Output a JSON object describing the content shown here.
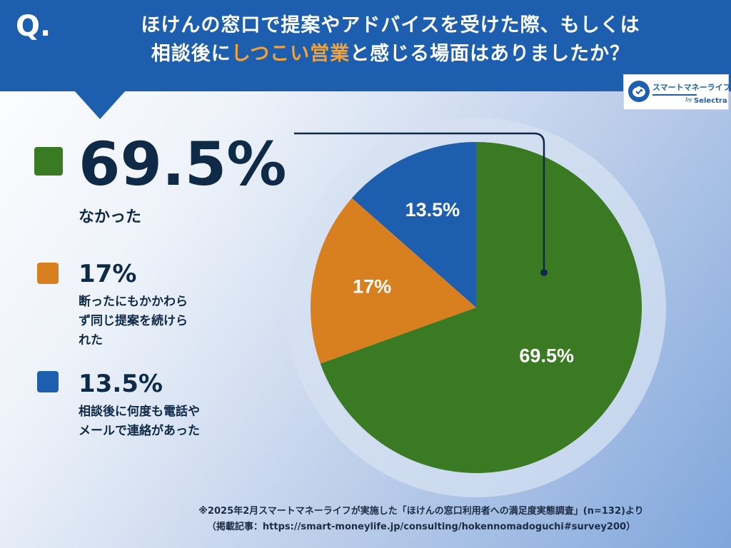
{
  "header": {
    "q_mark": "Q.",
    "title_line1": "ほけんの窓口で提案やアドバイスを受けた際、もしくは",
    "title_line2_pre": "相談後に",
    "title_line2_highlight": "しつこい営業",
    "title_line2_post": "と感じる場面はありましたか？"
  },
  "logo": {
    "main": "スマートマネーライフ",
    "by": "by",
    "sub": "Selectra"
  },
  "legend": [
    {
      "value": "69.5%",
      "label": "なかった"
    },
    {
      "value": "17%",
      "label_lines": [
        "断ったにもかかわら",
        "ず同じ提案を続けら",
        "れた"
      ]
    },
    {
      "value": "13.5%",
      "label_lines": [
        "相談後に何度も電話や",
        "メールで連絡があった"
      ]
    }
  ],
  "chart_data": {
    "type": "pie",
    "title": "ほけんの窓口で提案やアドバイスを受けた際、もしくは相談後にしつこい営業と感じる場面はありましたか？",
    "slices": [
      {
        "label": "なかった",
        "value": 69.5,
        "display": "69.5%",
        "color": "#3a7a22"
      },
      {
        "label": "断ったにもかかわらず同じ提案を続けられた",
        "value": 17,
        "display": "17%",
        "color": "#d88020"
      },
      {
        "label": "相談後に何度も電話やメールで連絡があった",
        "value": 13.5,
        "display": "13.5%",
        "color": "#1d5fae"
      }
    ]
  },
  "footnote": {
    "line1": "※2025年2月スマートマネーライフが実施した「ほけんの窓口利用者への満足度実態調査」(n=132)より",
    "line2": "（掲載記事：https://smart-moneylife.jp/consulting/hokennomadoguchi#survey200）"
  },
  "colors": {
    "header_bg": "#1d5fae",
    "highlight": "#f2a23a",
    "text_dark": "#0e2a47"
  }
}
